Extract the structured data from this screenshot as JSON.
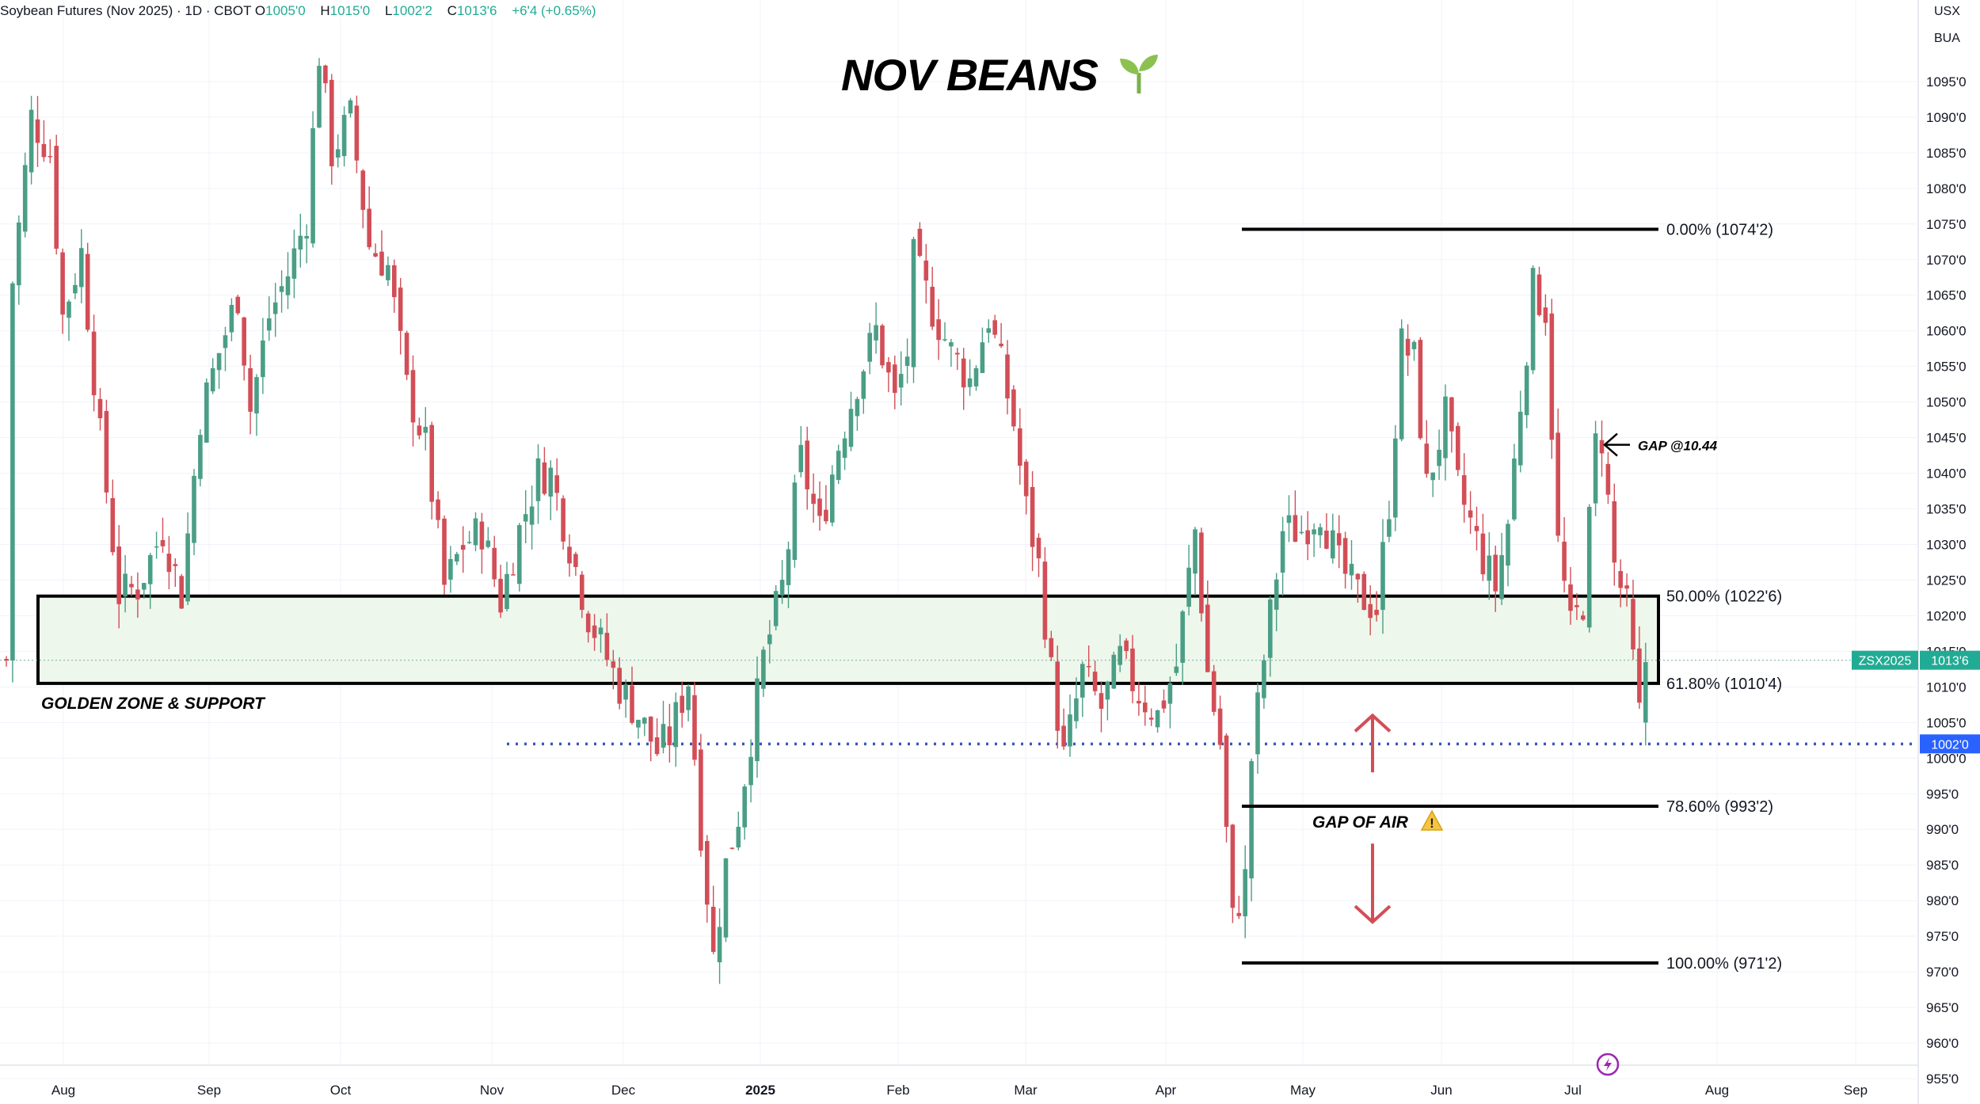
{
  "header": {
    "symbol": "Soybean Futures (Nov 2025) · 1D · CBOT",
    "open_label": "O",
    "open": "1005'0",
    "high_label": "H",
    "high": "1015'0",
    "low_label": "L",
    "low": "1002'2",
    "close_label": "C",
    "close": "1013'6",
    "change": "+6'4 (+0.65%)"
  },
  "title": "NOV BEANS",
  "title_icon": "seedling-icon",
  "currency": "USX",
  "unit": "BUA",
  "colors": {
    "up": "#4b9e86",
    "down": "#d24e57",
    "zone_fill": "#eef7ec",
    "dotted": "#3a55b8",
    "price_tag": "#22ab94",
    "dotted_tag": "#2962ff",
    "arrow": "#d24e57"
  },
  "chart_data": {
    "type": "candlestick",
    "x_tick_labels": [
      "Aug",
      "Sep",
      "Oct",
      "Nov",
      "Dec",
      "2025",
      "Feb",
      "Mar",
      "Apr",
      "May",
      "Jun",
      "Jul",
      "Aug",
      "Sep"
    ],
    "y_tick_labels": [
      "955'0",
      "960'0",
      "965'0",
      "970'0",
      "975'0",
      "980'0",
      "985'0",
      "990'0",
      "995'0",
      "1000'0",
      "1005'0",
      "1010'0",
      "1015'0",
      "1020'0",
      "1025'0",
      "1030'0",
      "1035'0",
      "1040'0",
      "1045'0",
      "1050'0",
      "1055'0",
      "1060'0",
      "1065'0",
      "1070'0",
      "1075'0",
      "1080'0",
      "1085'0",
      "1090'0",
      "1095'0"
    ],
    "ylim": [
      953,
      1104
    ],
    "last_price_label": "ZSX2025",
    "last_price": "1013'6",
    "dotted_level_label": "1002'0",
    "fib_levels": [
      {
        "label": "0.00% (1074'2)",
        "value": 1074.25
      },
      {
        "label": "50.00% (1022'6)",
        "value": 1022.75
      },
      {
        "label": "61.80% (1010'4)",
        "value": 1010.5
      },
      {
        "label": "78.60% (993'2)",
        "value": 993.25
      },
      {
        "label": "100.00% (971'2)",
        "value": 971.25
      }
    ],
    "annotations": {
      "zone": "GOLDEN ZONE & SUPPORT",
      "gap_air": "GAP OF AIR",
      "gap_air_icon": "warning-icon",
      "gap": "GAP @10.44",
      "gap_arrow_icon": "arrow-left-icon"
    },
    "series_anchors": [
      [
        1,
        1067
      ],
      [
        4,
        1090
      ],
      [
        7,
        1085
      ],
      [
        9,
        1062
      ],
      [
        12,
        1071
      ],
      [
        15,
        1045
      ],
      [
        18,
        1023
      ],
      [
        21,
        1024
      ],
      [
        25,
        1032
      ],
      [
        28,
        1023
      ],
      [
        31,
        1048
      ],
      [
        34,
        1057
      ],
      [
        37,
        1065
      ],
      [
        39,
        1049
      ],
      [
        42,
        1062
      ],
      [
        45,
        1068
      ],
      [
        48,
        1076
      ],
      [
        50,
        1099
      ],
      [
        52,
        1085
      ],
      [
        55,
        1090
      ],
      [
        58,
        1072
      ],
      [
        61,
        1069
      ],
      [
        64,
        1052
      ],
      [
        67,
        1044
      ],
      [
        70,
        1024
      ],
      [
        73,
        1030
      ],
      [
        76,
        1032
      ],
      [
        79,
        1022
      ],
      [
        82,
        1032
      ],
      [
        85,
        1040
      ],
      [
        87,
        1040
      ],
      [
        90,
        1030
      ],
      [
        93,
        1020
      ],
      [
        96,
        1014
      ],
      [
        98,
        1010
      ],
      [
        101,
        1006
      ],
      [
        104,
        1001
      ],
      [
        106,
        1003
      ],
      [
        109,
        1011
      ],
      [
        111,
        990
      ],
      [
        113,
        972
      ],
      [
        115,
        985
      ],
      [
        117,
        992
      ],
      [
        119,
        1003
      ],
      [
        121,
        1014
      ],
      [
        124,
        1024
      ],
      [
        127,
        1042
      ],
      [
        130,
        1032
      ],
      [
        133,
        1044
      ],
      [
        136,
        1053
      ],
      [
        139,
        1060
      ],
      [
        142,
        1050
      ],
      [
        144,
        1057
      ],
      [
        145,
        1070
      ],
      [
        148,
        1063
      ],
      [
        151,
        1057
      ],
      [
        154,
        1053
      ],
      [
        157,
        1062
      ],
      [
        159,
        1055
      ],
      [
        161,
        1047
      ],
      [
        163,
        1035
      ],
      [
        165,
        1027
      ],
      [
        167,
        1012
      ],
      [
        169,
        1000
      ],
      [
        172,
        1012
      ],
      [
        175,
        1007
      ],
      [
        178,
        1014
      ],
      [
        181,
        1009
      ],
      [
        184,
        1006
      ],
      [
        187,
        1013
      ],
      [
        190,
        1032
      ],
      [
        192,
        1012
      ],
      [
        194,
        1002
      ],
      [
        196,
        977
      ],
      [
        198,
        983
      ],
      [
        199,
        1000
      ],
      [
        201,
        1014
      ],
      [
        204,
        1032
      ],
      [
        207,
        1032
      ],
      [
        210,
        1035
      ],
      [
        213,
        1027
      ],
      [
        216,
        1023
      ],
      [
        219,
        1021
      ],
      [
        221,
        1036
      ],
      [
        223,
        1058
      ],
      [
        225,
        1056
      ],
      [
        227,
        1038
      ],
      [
        230,
        1048
      ],
      [
        232,
        1038
      ],
      [
        234,
        1033
      ],
      [
        236,
        1028
      ],
      [
        238,
        1024
      ],
      [
        240,
        1033
      ],
      [
        242,
        1050
      ],
      [
        244,
        1066
      ],
      [
        246,
        1063
      ],
      [
        248,
        1030
      ],
      [
        250,
        1018
      ],
      [
        252,
        1022
      ],
      [
        254,
        1044
      ],
      [
        255,
        1045
      ],
      [
        257,
        1027
      ],
      [
        259,
        1021
      ],
      [
        261,
        1006
      ],
      [
        262,
        1013.75
      ]
    ],
    "candles_note": "daily OHLC, values in cents per bushel"
  }
}
